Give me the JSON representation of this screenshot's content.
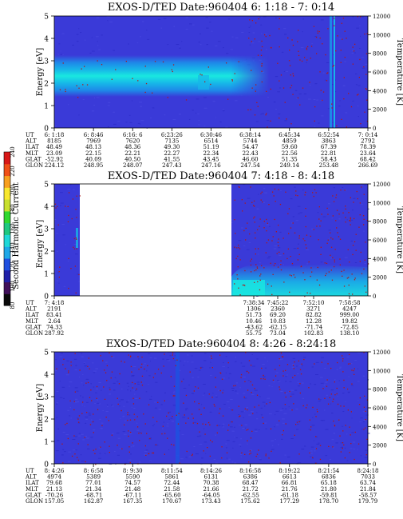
{
  "colors": {
    "background_spectrogram": "#3a3ad8",
    "band_peak": "#19e8e0",
    "band_mid": "#17b6e8",
    "band_edge": "#1e88e8",
    "data_gap": "#ffffff",
    "dot_red": "#b01818",
    "colorbar": [
      "#0a0a0a",
      "#40105a",
      "#2020a8",
      "#2050e0",
      "#20a8e8",
      "#20d8d8",
      "#20c880",
      "#30d830",
      "#c8e030",
      "#f8e830",
      "#f8a020",
      "#f05018",
      "#d81818"
    ]
  },
  "colorbar": {
    "label": "Second Harmonic Current",
    "ticks": [
      "80",
      "100",
      "120",
      "140",
      "160",
      "180",
      "200",
      "220",
      "240"
    ]
  },
  "panels": [
    {
      "title": "EXOS-D/TED   Date:960404  6: 1:18 - 7: 0:14",
      "ylabel": "Energy [eV]",
      "y2label": "Temperature [K]",
      "yticks": [
        "0",
        "1",
        "2",
        "3",
        "4",
        "5"
      ],
      "y2ticks": [
        "0",
        "2000",
        "4000",
        "6000",
        "8000",
        "10000",
        "12000"
      ],
      "row_labels": [
        "UT",
        "ALT",
        "ILAT",
        "MLT",
        "GLAT",
        "GLON"
      ],
      "columns": [
        [
          "6: 1:18",
          "8185",
          "48.49",
          "23.09",
          "-52.92",
          "224.12"
        ],
        [
          "6: 8:46",
          "7969",
          "48.13",
          "22.15",
          "40.09",
          "248.95"
        ],
        [
          "6:16: 6",
          "7620",
          "48.36",
          "22.21",
          "40.50",
          "248.07"
        ],
        [
          "6:23:26",
          "7135",
          "49.30",
          "22.27",
          "41.55",
          "247.43"
        ],
        [
          "6:30:46",
          "6514",
          "51.19",
          "22.34",
          "43.45",
          "247.16"
        ],
        [
          "6:38:14",
          "5744",
          "54.47",
          "22.43",
          "46.60",
          "247.54"
        ],
        [
          "6:45:34",
          "4859",
          "59.60",
          "22.56",
          "51.35",
          "249.14"
        ],
        [
          "6:52:54",
          "3863",
          "67.39",
          "22.81",
          "58.43",
          "253.48"
        ],
        [
          "7: 0:14",
          "2792",
          "78.39",
          "23.64",
          "68.42",
          "266.69"
        ]
      ]
    },
    {
      "title": "EXOS-D/TED   Date:960404  7: 4:18 - 8: 4:18",
      "ylabel": "Energy [eV]",
      "y2label": "Temperature [K]",
      "yticks": [
        "0",
        "1",
        "2",
        "3",
        "4",
        "5"
      ],
      "y2ticks": [
        "0",
        "2000",
        "4000",
        "6000",
        "8000",
        "10000",
        "12000"
      ],
      "row_labels": [
        "UT",
        "ALT",
        "ILAT",
        "MLT",
        "GLAT",
        "GLON"
      ],
      "columns": [
        [
          "7: 4:18",
          "2191",
          "83.41",
          "2.64",
          "74.33",
          "287.92"
        ],
        [
          "7:38:34",
          "1306",
          "51.73",
          "10.46",
          "-43.62",
          "55.75"
        ],
        [
          "7:45:22",
          "2360",
          "69.20",
          "10.83",
          "-62.15",
          "73.04"
        ],
        [
          "7:52:10",
          "3271",
          "82.82",
          "12.28",
          "-71.74",
          "102.83"
        ],
        [
          "7:58:58",
          "4247",
          "999.00",
          "19.82",
          "-72.85",
          "138.10"
        ]
      ]
    },
    {
      "title": "EXOS-D/TED   Date:960404  8: 4:26 - 8:24:18",
      "ylabel": "Energy [eV]",
      "y2label": "Temperature [K]",
      "yticks": [
        "0",
        "1",
        "2",
        "3",
        "4",
        "5"
      ],
      "y2ticks": [
        "0",
        "2000",
        "4000",
        "6000",
        "8000",
        "10000",
        "12000"
      ],
      "row_labels": [
        "UT",
        "ALT",
        "ILAT",
        "MLT",
        "GLAT",
        "GLON"
      ],
      "columns": [
        [
          "8: 4:26",
          "4974",
          "79.68",
          "21.13",
          "-70.26",
          "157.05"
        ],
        [
          "8: 6:58",
          "5389",
          "77.01",
          "21.34",
          "-68.71",
          "162.87"
        ],
        [
          "8: 9:30",
          "5590",
          "74.57",
          "21.48",
          "-67.11",
          "167.35"
        ],
        [
          "8:11:54",
          "5861",
          "72.44",
          "21.58",
          "-65.60",
          "170.67"
        ],
        [
          "8:14:26",
          "6131",
          "70.38",
          "21.66",
          "-64.05",
          "173.43"
        ],
        [
          "8:16:58",
          "6386",
          "68.47",
          "21.72",
          "-62.55",
          "175.62"
        ],
        [
          "8:19:22",
          "6613",
          "66.81",
          "21.76",
          "-61.18",
          "177.29"
        ],
        [
          "8:21:54",
          "6836",
          "65.18",
          "21.80",
          "-59.81",
          "178.70"
        ],
        [
          "8:24:18",
          "7033",
          "63.74",
          "21.84",
          "-58.57",
          "179.79"
        ]
      ]
    }
  ],
  "chart_data": [
    {
      "type": "heatmap",
      "title": "EXOS-D/TED   Date:960404  6: 1:18 - 7: 0:14",
      "xlabel": "",
      "ylabel": "Energy [eV]",
      "y2label": "Temperature [K]",
      "ylim": [
        0,
        5
      ],
      "y2lim": [
        0,
        12000
      ],
      "x_categories": [
        "6: 1:18",
        "6: 8:46",
        "6:16: 6",
        "6:23:26",
        "6:30:46",
        "6:38:14",
        "6:45:34",
        "6:52:54",
        "7: 0:14"
      ],
      "features": {
        "band_energy_eV": [
          1.3,
          2.6
        ],
        "band_peak_eV": 2.0,
        "band_x_range_UT": [
          "6: 1:18",
          "6:42:00"
        ],
        "bright_vertical_lines_UT": [
          "6:52:00",
          "6:53:10"
        ]
      },
      "grid": false,
      "legend": "colorbar-left"
    },
    {
      "type": "heatmap",
      "title": "EXOS-D/TED   Date:960404  7: 4:18 - 8: 4:18",
      "xlabel": "",
      "ylabel": "Energy [eV]",
      "y2label": "Temperature [K]",
      "ylim": [
        0,
        5
      ],
      "y2lim": [
        0,
        12000
      ],
      "x_categories": [
        "7: 4:18",
        "7:38:34",
        "7:45:22",
        "7:52:10",
        "7:58:58"
      ],
      "features": {
        "data_gap_UT": [
          "7: 8:00",
          "7:38:34"
        ],
        "low_energy_band_eV": [
          0.0,
          1.4
        ]
      },
      "grid": false,
      "legend": "colorbar-left"
    },
    {
      "type": "heatmap",
      "title": "EXOS-D/TED   Date:960404  8: 4:26 - 8:24:18",
      "xlabel": "",
      "ylabel": "Energy [eV]",
      "y2label": "Temperature [K]",
      "ylim": [
        0,
        5
      ],
      "y2lim": [
        0,
        12000
      ],
      "x_categories": [
        "8: 4:26",
        "8: 6:58",
        "8: 9:30",
        "8:11:54",
        "8:14:26",
        "8:16:58",
        "8:19:22",
        "8:21:54",
        "8:24:18"
      ],
      "features": {
        "bright_vertical_line_UT": "8:11:30"
      },
      "grid": false,
      "legend": "colorbar-left"
    }
  ]
}
